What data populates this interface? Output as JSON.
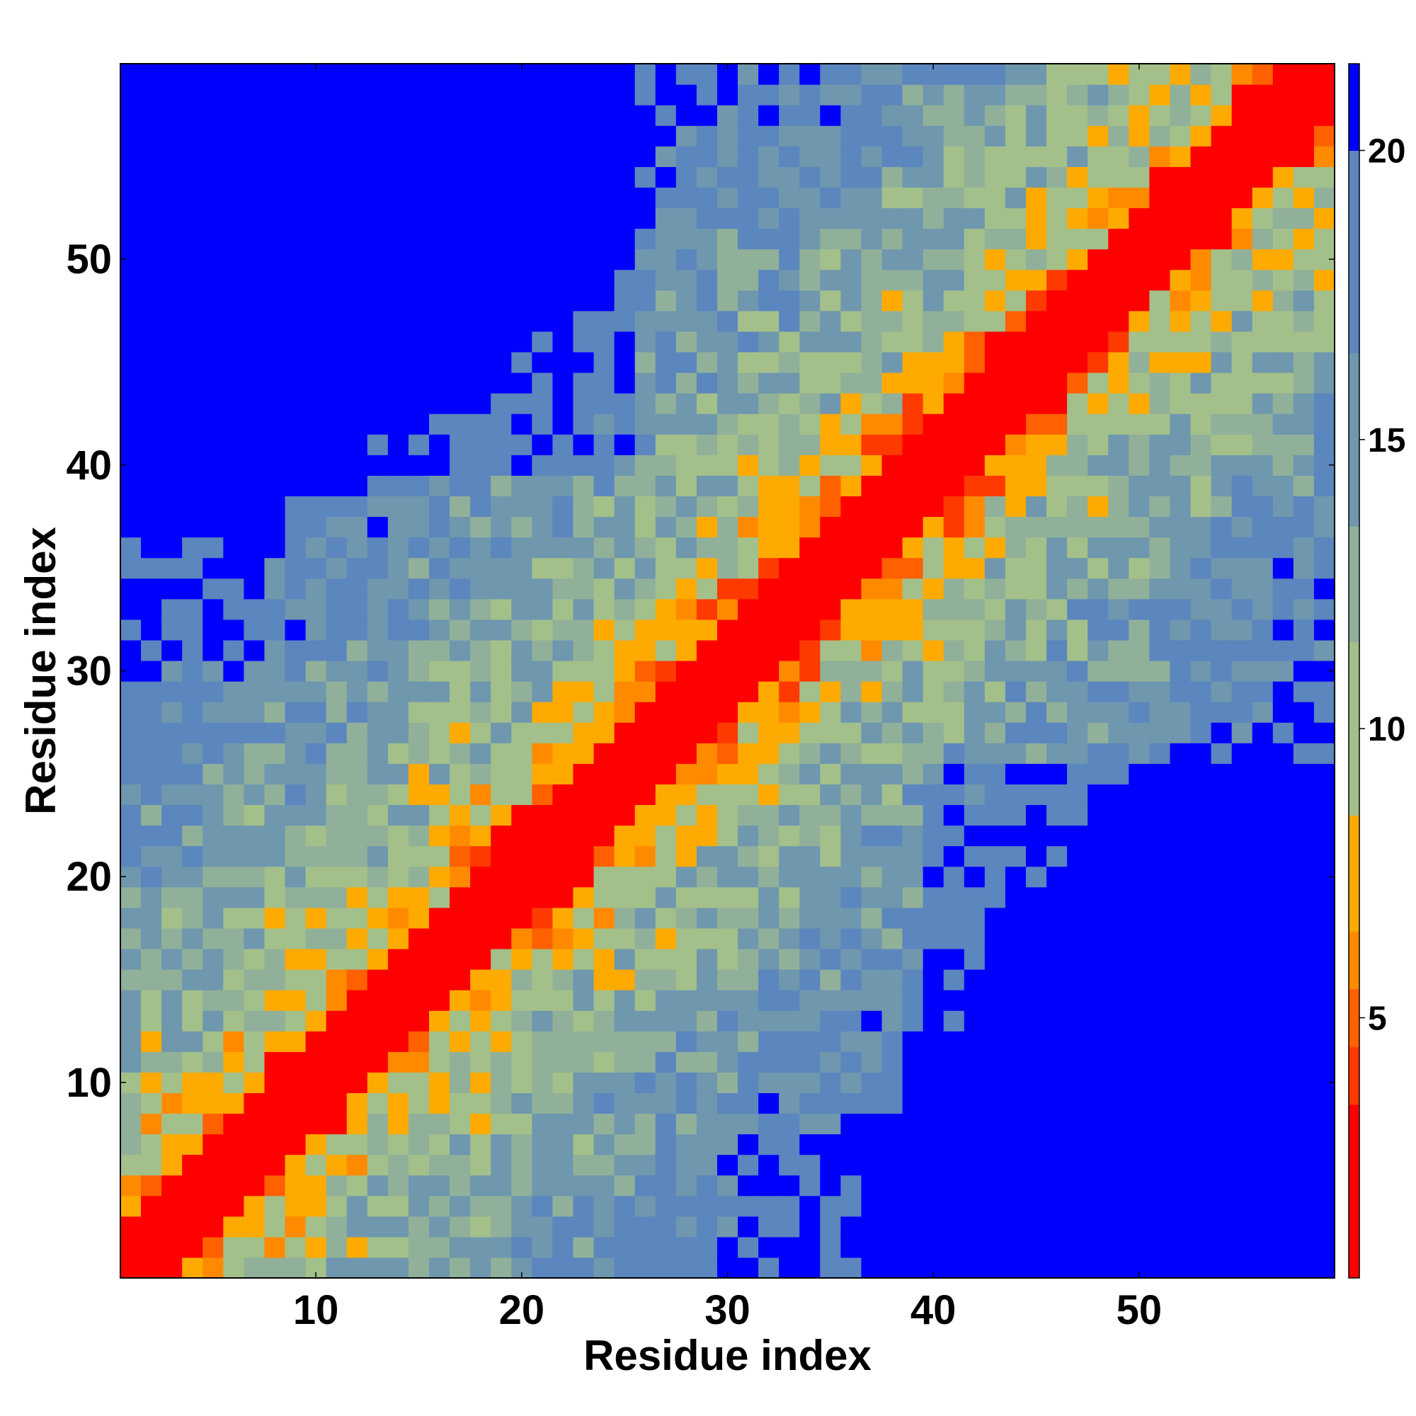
{
  "chart_data": {
    "type": "heatmap",
    "title": "",
    "xlabel": "Residue index",
    "ylabel": "Residue index",
    "n": 59,
    "xlim": [
      0.5,
      59.5
    ],
    "ylim": [
      0.5,
      59.5
    ],
    "x_ticks": [
      10,
      20,
      30,
      40,
      50
    ],
    "y_ticks": [
      10,
      20,
      30,
      40,
      50
    ],
    "x_tick_labels": [
      "10",
      "20",
      "30",
      "40",
      "50"
    ],
    "y_tick_labels": [
      "10",
      "20",
      "30",
      "40",
      "50"
    ],
    "value_meaning": "distance (color scale 0-21+; saturated blue = 20 and above)",
    "colorbar": {
      "ticks": [
        5,
        10,
        15,
        20
      ],
      "tick_labels": [
        "5",
        "10",
        "15",
        "20"
      ],
      "range": [
        0.5,
        21.5
      ],
      "bins": [
        {
          "from": 0.5,
          "to": 3.5,
          "color": "#ff0000"
        },
        {
          "from": 3.5,
          "to": 4.5,
          "color": "#ff3a00"
        },
        {
          "from": 4.5,
          "to": 5.5,
          "color": "#ff6000"
        },
        {
          "from": 5.5,
          "to": 6.5,
          "color": "#ff8a00"
        },
        {
          "from": 6.5,
          "to": 8.5,
          "color": "#ffaa00"
        },
        {
          "from": 8.5,
          "to": 11.5,
          "color": "#a3c08a"
        },
        {
          "from": 11.5,
          "to": 13.5,
          "color": "#90b09a"
        },
        {
          "from": 13.5,
          "to": 16.5,
          "color": "#6f97ae"
        },
        {
          "from": 16.5,
          "to": 20,
          "color": "#5b86be"
        },
        {
          "from": 20,
          "to": 21.5,
          "color": "#0000ff"
        }
      ]
    },
    "matrix_description": "Symmetric residue-residue distance map; diagonal band ~0-3 (red), near-diagonal orange, mid-range green/steel-blue, far off-diagonal regions >=20 (blue).",
    "band_params": {
      "profile": [
        {
          "d": 0,
          "v": 0
        },
        {
          "d": 1,
          "v": 1
        },
        {
          "d": 2,
          "v": 3
        },
        {
          "d": 3,
          "v": 6
        },
        {
          "d": 4,
          "v": 7.5
        },
        {
          "d": 5,
          "v": 9
        },
        {
          "d": 8,
          "v": 11
        },
        {
          "d": 14,
          "v": 13.5
        },
        {
          "d": 20,
          "v": 16
        },
        {
          "d": 26,
          "v": 18
        },
        {
          "d": 32,
          "v": 21
        }
      ],
      "far_blocks": [
        {
          "i_from": 40,
          "i_to": 59,
          "j_from": 1,
          "j_to": 25,
          "v": 21
        },
        {
          "i_from": 37,
          "i_to": 59,
          "j_from": 1,
          "j_to": 8,
          "v": 21
        }
      ]
    }
  }
}
